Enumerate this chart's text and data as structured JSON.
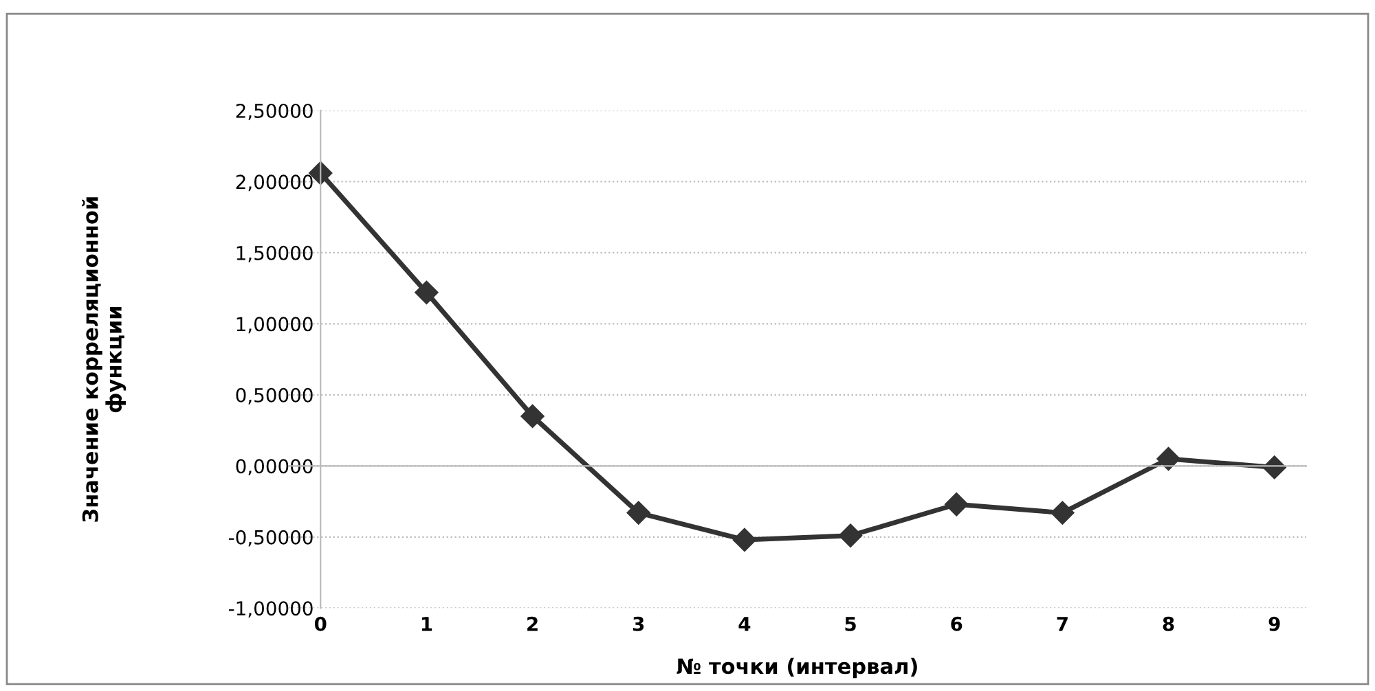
{
  "chart_data": {
    "type": "line",
    "xlabel": "№ точки (интервал)",
    "ylabel": "Значение корреляционной\nфункции",
    "categories": [
      "0",
      "1",
      "2",
      "3",
      "4",
      "5",
      "6",
      "7",
      "8",
      "9"
    ],
    "series": [
      {
        "color": "#333333",
        "values": [
          2.06,
          1.22,
          0.35,
          -0.33,
          -0.52,
          -0.49,
          -0.27,
          -0.33,
          0.05,
          -0.01
        ]
      }
    ],
    "ylim": [
      -1,
      2.5
    ],
    "yticks": [
      {
        "value": -1,
        "label": "-1,00000"
      },
      {
        "value": -0.5,
        "label": "-0,50000"
      },
      {
        "value": 0,
        "label": "0,00000"
      },
      {
        "value": 0.5,
        "label": "0,50000"
      },
      {
        "value": 1,
        "label": "1,00000"
      },
      {
        "value": 1.5,
        "label": "1,50000"
      },
      {
        "value": 2,
        "label": "2,00000"
      },
      {
        "value": 2.5,
        "label": "2,50000"
      }
    ],
    "grid": "y",
    "marker": "diamond",
    "line_style": "solid"
  }
}
